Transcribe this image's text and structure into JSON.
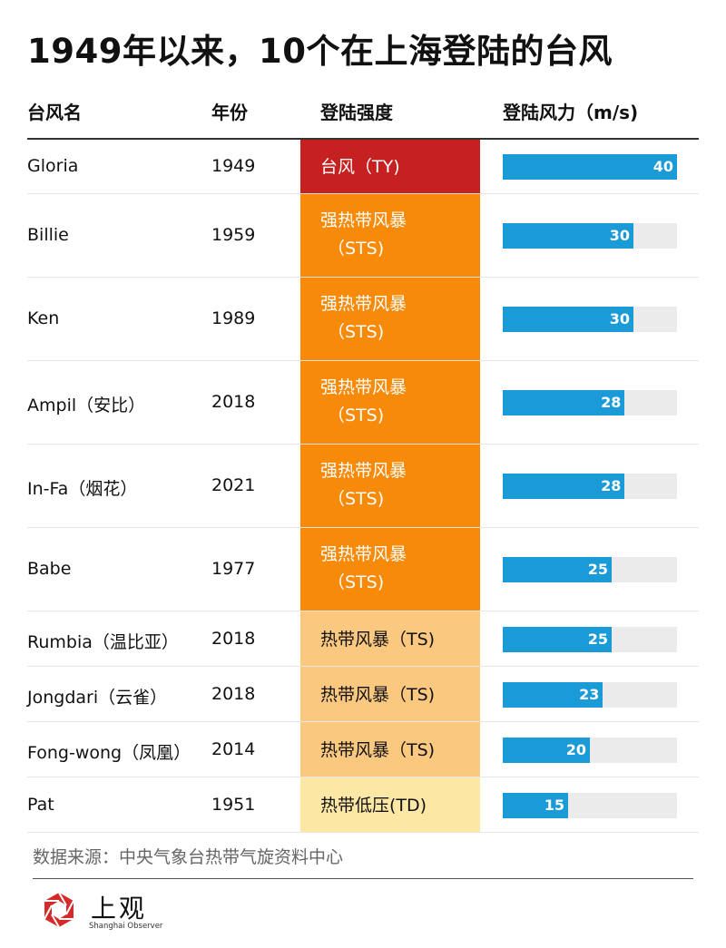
{
  "title": "1949年以来，10个在上海登陆的台风",
  "headers": {
    "name": "台风名",
    "year": "年份",
    "intensity": "登陆强度",
    "wind": "登陆风力（m/s)"
  },
  "source": "数据来源：中央气象台热带气旋资料中心",
  "logo": {
    "name_cn": "上观",
    "name_en": "Shanghai Observer",
    "color": "#d42a2a"
  },
  "colors": {
    "TY": "#c72020",
    "STS": "#f78a08",
    "TS": "#fbc880",
    "TD": "#fde7a4",
    "bar": "#1a9bd7",
    "track": "#ebebeb"
  },
  "chart_data": {
    "type": "table",
    "title": "1949年以来，10个在上海登陆的台风",
    "columns": [
      "台风名",
      "年份",
      "登陆强度",
      "登陆风力（m/s)"
    ],
    "xlim": [
      0,
      40
    ],
    "rows": [
      {
        "name": "Gloria",
        "year": "1949",
        "intensity": "台风（TY)",
        "intensity_lines": [
          "台风（TY)"
        ],
        "category": "TY",
        "wind": 40
      },
      {
        "name": "Billie",
        "year": "1959",
        "intensity": "强热带风暴（STS)",
        "intensity_lines": [
          "强热带风暴",
          "（STS)"
        ],
        "category": "STS",
        "wind": 30
      },
      {
        "name": "Ken",
        "year": "1989",
        "intensity": "强热带风暴（STS)",
        "intensity_lines": [
          "强热带风暴",
          "（STS)"
        ],
        "category": "STS",
        "wind": 30
      },
      {
        "name": "Ampil（安比）",
        "year": "2018",
        "intensity": "强热带风暴（STS)",
        "intensity_lines": [
          "强热带风暴",
          "（STS)"
        ],
        "category": "STS",
        "wind": 28
      },
      {
        "name": "In-Fa（烟花）",
        "year": "2021",
        "intensity": "强热带风暴（STS)",
        "intensity_lines": [
          "强热带风暴",
          "（STS)"
        ],
        "category": "STS",
        "wind": 28
      },
      {
        "name": "Babe",
        "year": "1977",
        "intensity": "强热带风暴（STS)",
        "intensity_lines": [
          "强热带风暴",
          "（STS)"
        ],
        "category": "STS",
        "wind": 25
      },
      {
        "name": "Rumbia（温比亚）",
        "year": "2018",
        "intensity": "热带风暴（TS)",
        "intensity_lines": [
          "热带风暴（TS)"
        ],
        "category": "TS",
        "wind": 25
      },
      {
        "name": "Jongdari（云雀）",
        "year": "2018",
        "intensity": "热带风暴（TS)",
        "intensity_lines": [
          "热带风暴（TS)"
        ],
        "category": "TS",
        "wind": 23
      },
      {
        "name": "Fong-wong（凤凰）",
        "year": "2014",
        "intensity": "热带风暴（TS)",
        "intensity_lines": [
          "热带风暴（TS)"
        ],
        "category": "TS",
        "wind": 20
      },
      {
        "name": "Pat",
        "year": "1951",
        "intensity": "热带低压(TD)",
        "intensity_lines": [
          "热带低压(TD)"
        ],
        "category": "TD",
        "wind": 15
      }
    ]
  }
}
